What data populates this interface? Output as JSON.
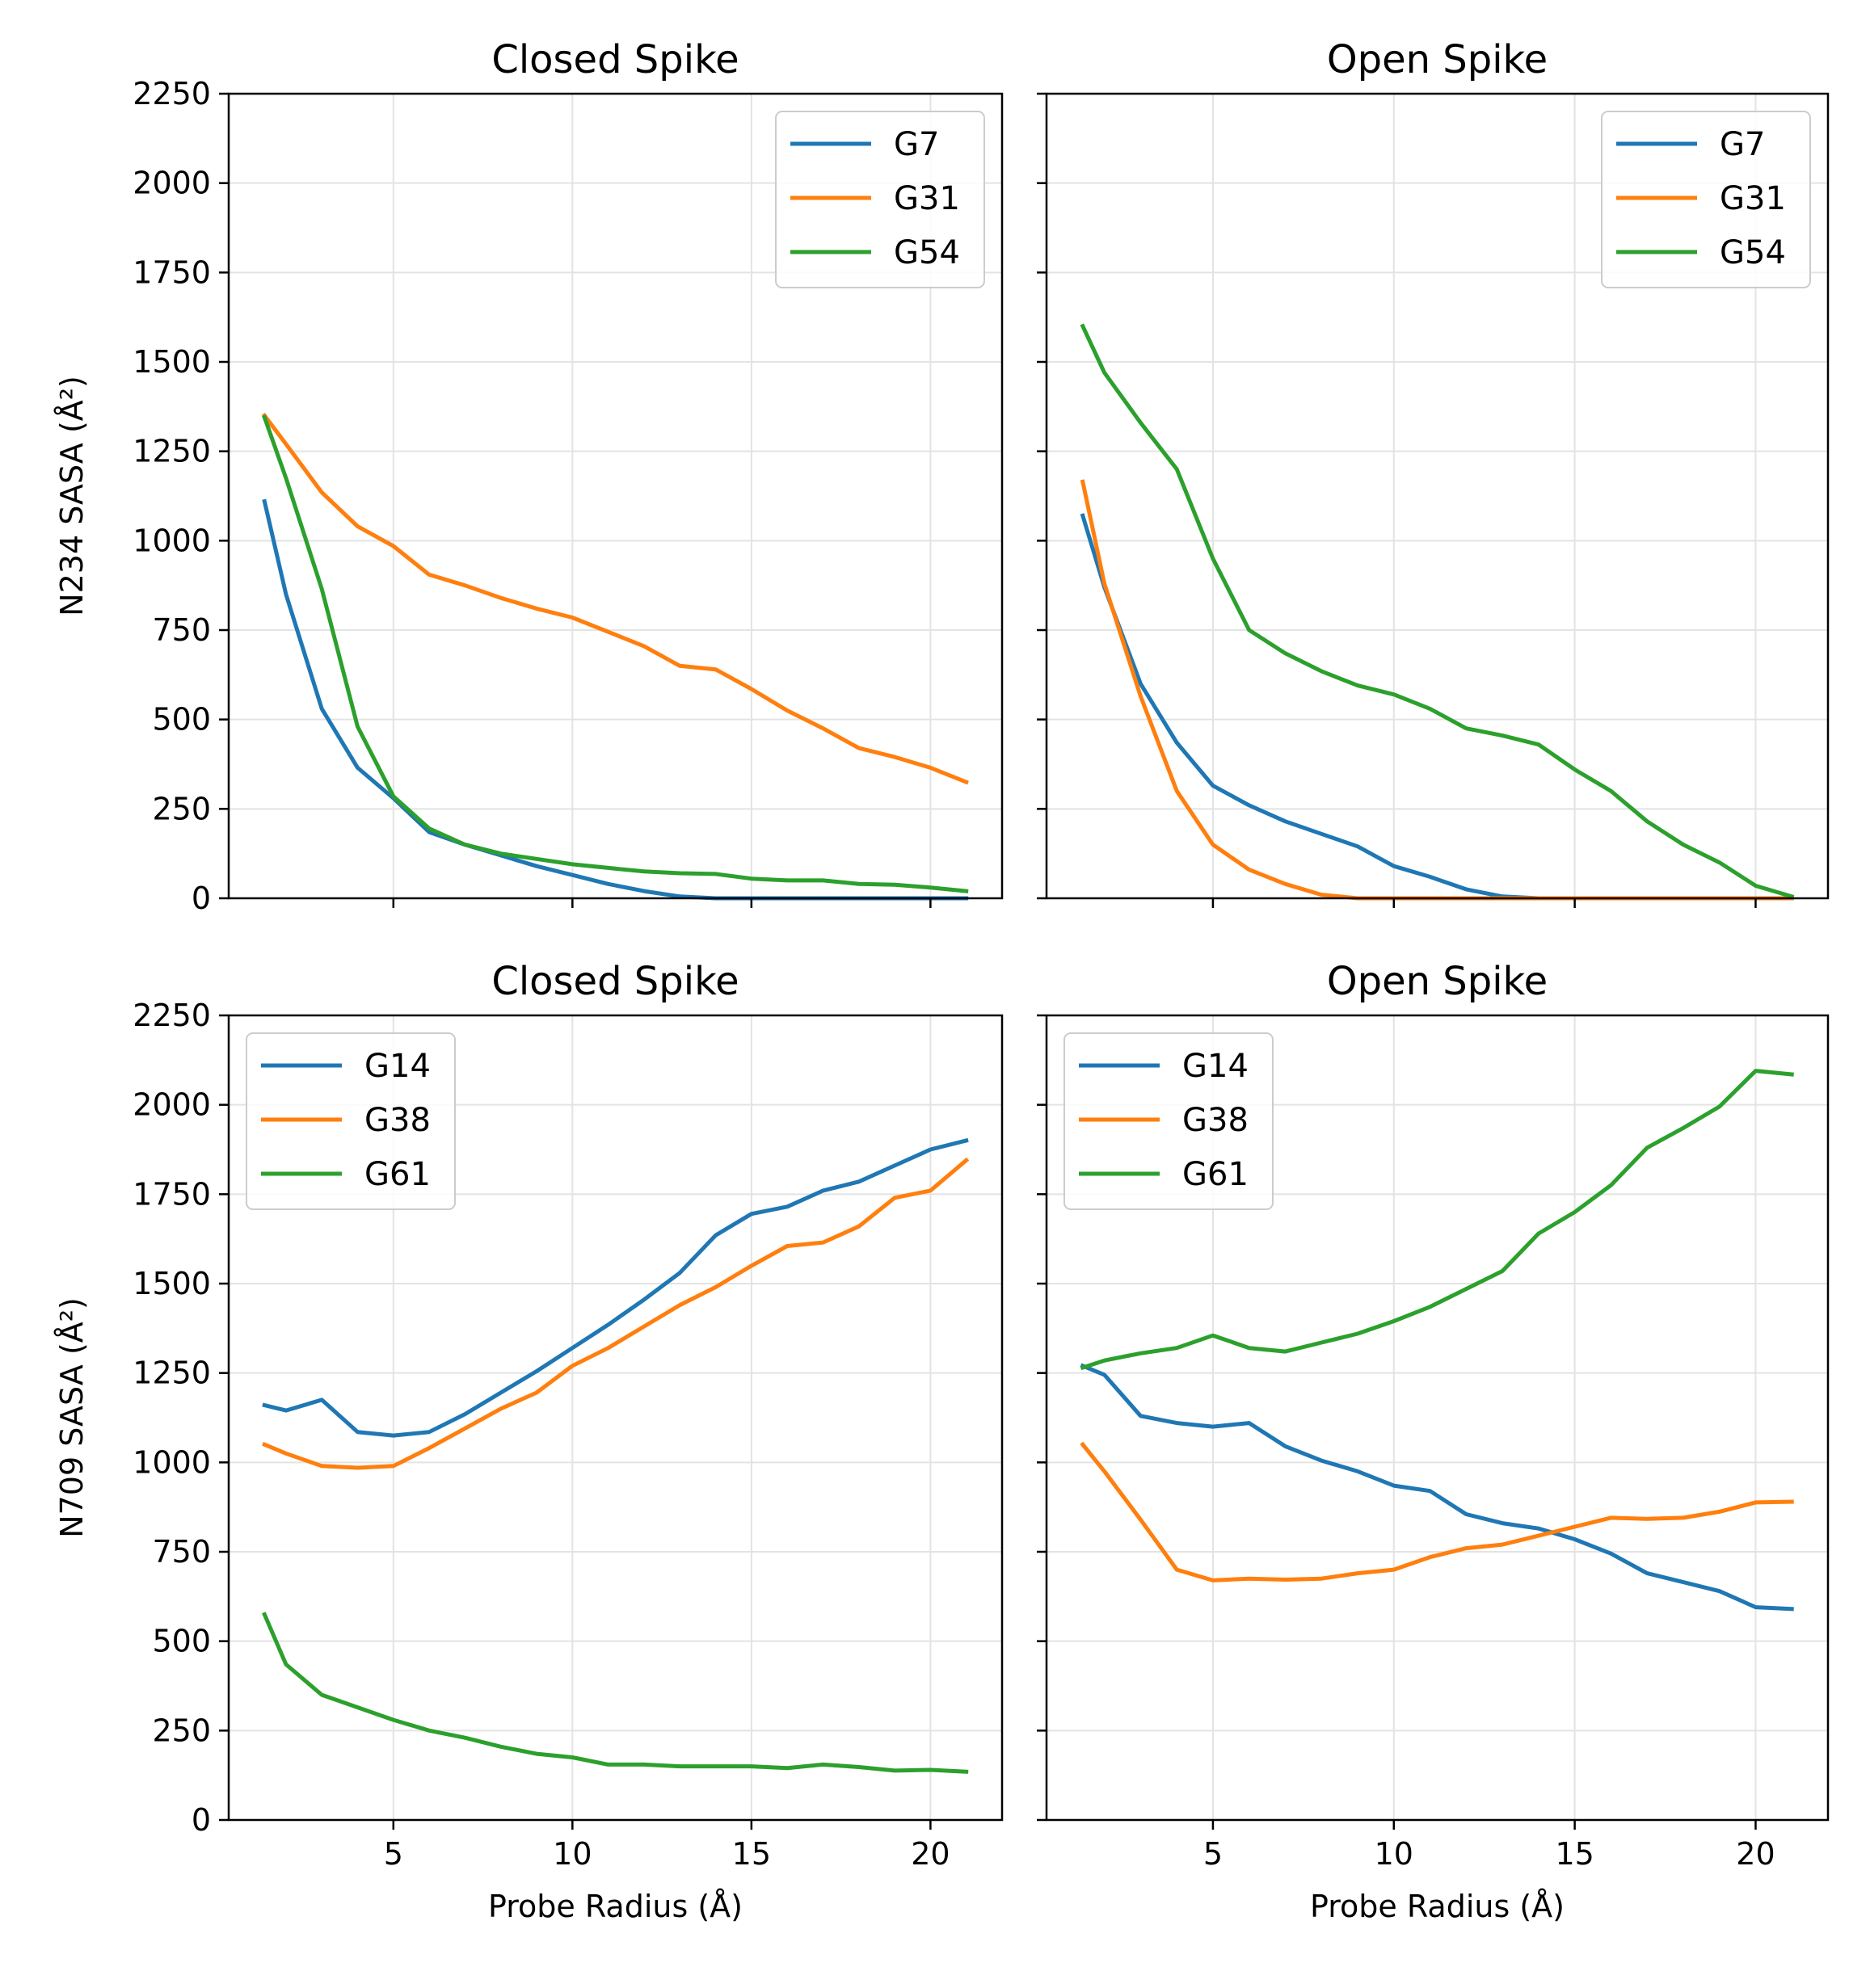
{
  "chart_data": [
    {
      "type": "line",
      "title": "Closed Spike",
      "xlabel": "",
      "ylabel": "N234 SASA (Å²)",
      "xlim": [
        0.4,
        22
      ],
      "ylim": [
        0,
        2250
      ],
      "xticks": [
        "5",
        "10",
        "15",
        "20"
      ],
      "yticks": [
        "0",
        "250",
        "500",
        "750",
        "1000",
        "1250",
        "1500",
        "1750",
        "2000",
        "2250"
      ],
      "grid": true,
      "legend": "top-right",
      "x": [
        1.4,
        2,
        3,
        4,
        5,
        6,
        7,
        8,
        9,
        10,
        11,
        12,
        13,
        14,
        15,
        16,
        17,
        18,
        19,
        20,
        21
      ],
      "series": [
        {
          "name": "G7",
          "color": "#1f77b4",
          "values": [
            1110,
            850,
            530,
            365,
            280,
            185,
            150,
            120,
            90,
            65,
            40,
            20,
            5,
            0,
            0,
            0,
            0,
            0,
            0,
            0,
            0
          ]
        },
        {
          "name": "G31",
          "color": "#ff7f0e",
          "values": [
            1350,
            1270,
            1135,
            1040,
            985,
            905,
            875,
            840,
            810,
            785,
            745,
            705,
            650,
            640,
            585,
            525,
            475,
            420,
            395,
            365,
            325
          ]
        },
        {
          "name": "G54",
          "color": "#2ca02c",
          "values": [
            1345,
            1175,
            865,
            480,
            285,
            195,
            150,
            125,
            110,
            95,
            85,
            75,
            70,
            68,
            55,
            50,
            50,
            40,
            38,
            30,
            20
          ]
        }
      ]
    },
    {
      "type": "line",
      "title": "Open Spike",
      "xlabel": "",
      "ylabel": "",
      "xlim": [
        0.4,
        22
      ],
      "ylim": [
        0,
        2250
      ],
      "xticks": [
        "5",
        "10",
        "15",
        "20"
      ],
      "yticks": [],
      "grid": true,
      "legend": "top-right",
      "x": [
        1.4,
        2,
        3,
        4,
        5,
        6,
        7,
        8,
        9,
        10,
        11,
        12,
        13,
        14,
        15,
        16,
        17,
        18,
        19,
        20,
        21
      ],
      "series": [
        {
          "name": "G7",
          "color": "#1f77b4",
          "values": [
            1070,
            870,
            600,
            435,
            315,
            260,
            215,
            180,
            145,
            90,
            60,
            25,
            5,
            0,
            0,
            0,
            0,
            0,
            0,
            0,
            0
          ]
        },
        {
          "name": "G31",
          "color": "#ff7f0e",
          "values": [
            1165,
            880,
            565,
            300,
            150,
            80,
            40,
            10,
            0,
            0,
            0,
            0,
            0,
            0,
            0,
            0,
            0,
            0,
            0,
            0,
            0
          ]
        },
        {
          "name": "G54",
          "color": "#2ca02c",
          "values": [
            1600,
            1470,
            1330,
            1200,
            950,
            750,
            685,
            635,
            595,
            570,
            530,
            475,
            455,
            430,
            360,
            300,
            215,
            150,
            100,
            35,
            5
          ]
        }
      ]
    },
    {
      "type": "line",
      "title": "Closed Spike",
      "xlabel": "Probe Radius (Å)",
      "ylabel": "N709 SASA (Å²)",
      "xlim": [
        0.4,
        22
      ],
      "ylim": [
        0,
        2250
      ],
      "xticks": [
        "5",
        "10",
        "15",
        "20"
      ],
      "yticks": [
        "0",
        "250",
        "500",
        "750",
        "1000",
        "1250",
        "1500",
        "1750",
        "2000",
        "2250"
      ],
      "grid": true,
      "legend": "top-left",
      "x": [
        1.4,
        2,
        3,
        4,
        5,
        6,
        7,
        8,
        9,
        10,
        11,
        12,
        13,
        14,
        15,
        16,
        17,
        18,
        19,
        20,
        21
      ],
      "series": [
        {
          "name": "G14",
          "color": "#1f77b4",
          "values": [
            1160,
            1145,
            1175,
            1085,
            1075,
            1085,
            1135,
            1195,
            1255,
            1320,
            1385,
            1455,
            1530,
            1635,
            1695,
            1715,
            1760,
            1785,
            1830,
            1875,
            1900
          ]
        },
        {
          "name": "G38",
          "color": "#ff7f0e",
          "values": [
            1050,
            1025,
            990,
            985,
            990,
            1040,
            1095,
            1150,
            1195,
            1270,
            1320,
            1380,
            1440,
            1490,
            1550,
            1605,
            1615,
            1660,
            1740,
            1760,
            1845
          ]
        },
        {
          "name": "G61",
          "color": "#2ca02c",
          "values": [
            575,
            435,
            350,
            315,
            280,
            250,
            230,
            205,
            185,
            175,
            155,
            155,
            150,
            150,
            150,
            145,
            155,
            148,
            138,
            140,
            135
          ]
        }
      ]
    },
    {
      "type": "line",
      "title": "Open Spike",
      "xlabel": "Probe Radius (Å)",
      "ylabel": "",
      "xlim": [
        0.4,
        22
      ],
      "ylim": [
        0,
        2250
      ],
      "xticks": [
        "5",
        "10",
        "15",
        "20"
      ],
      "yticks": [],
      "grid": true,
      "legend": "top-left",
      "x": [
        1.4,
        2,
        3,
        4,
        5,
        6,
        7,
        8,
        9,
        10,
        11,
        12,
        13,
        14,
        15,
        16,
        17,
        18,
        19,
        20,
        21
      ],
      "series": [
        {
          "name": "G14",
          "color": "#1f77b4",
          "values": [
            1270,
            1245,
            1130,
            1110,
            1100,
            1110,
            1045,
            1005,
            975,
            935,
            920,
            855,
            830,
            815,
            785,
            745,
            690,
            665,
            640,
            595,
            590
          ]
        },
        {
          "name": "G38",
          "color": "#ff7f0e",
          "values": [
            1050,
            975,
            840,
            700,
            670,
            675,
            672,
            675,
            690,
            700,
            735,
            760,
            770,
            795,
            820,
            845,
            842,
            845,
            862,
            888,
            890
          ]
        },
        {
          "name": "G61",
          "color": "#2ca02c",
          "values": [
            1265,
            1285,
            1305,
            1320,
            1355,
            1320,
            1310,
            1335,
            1360,
            1395,
            1435,
            1485,
            1535,
            1640,
            1700,
            1775,
            1880,
            1935,
            1995,
            2095,
            2085
          ]
        }
      ]
    }
  ]
}
